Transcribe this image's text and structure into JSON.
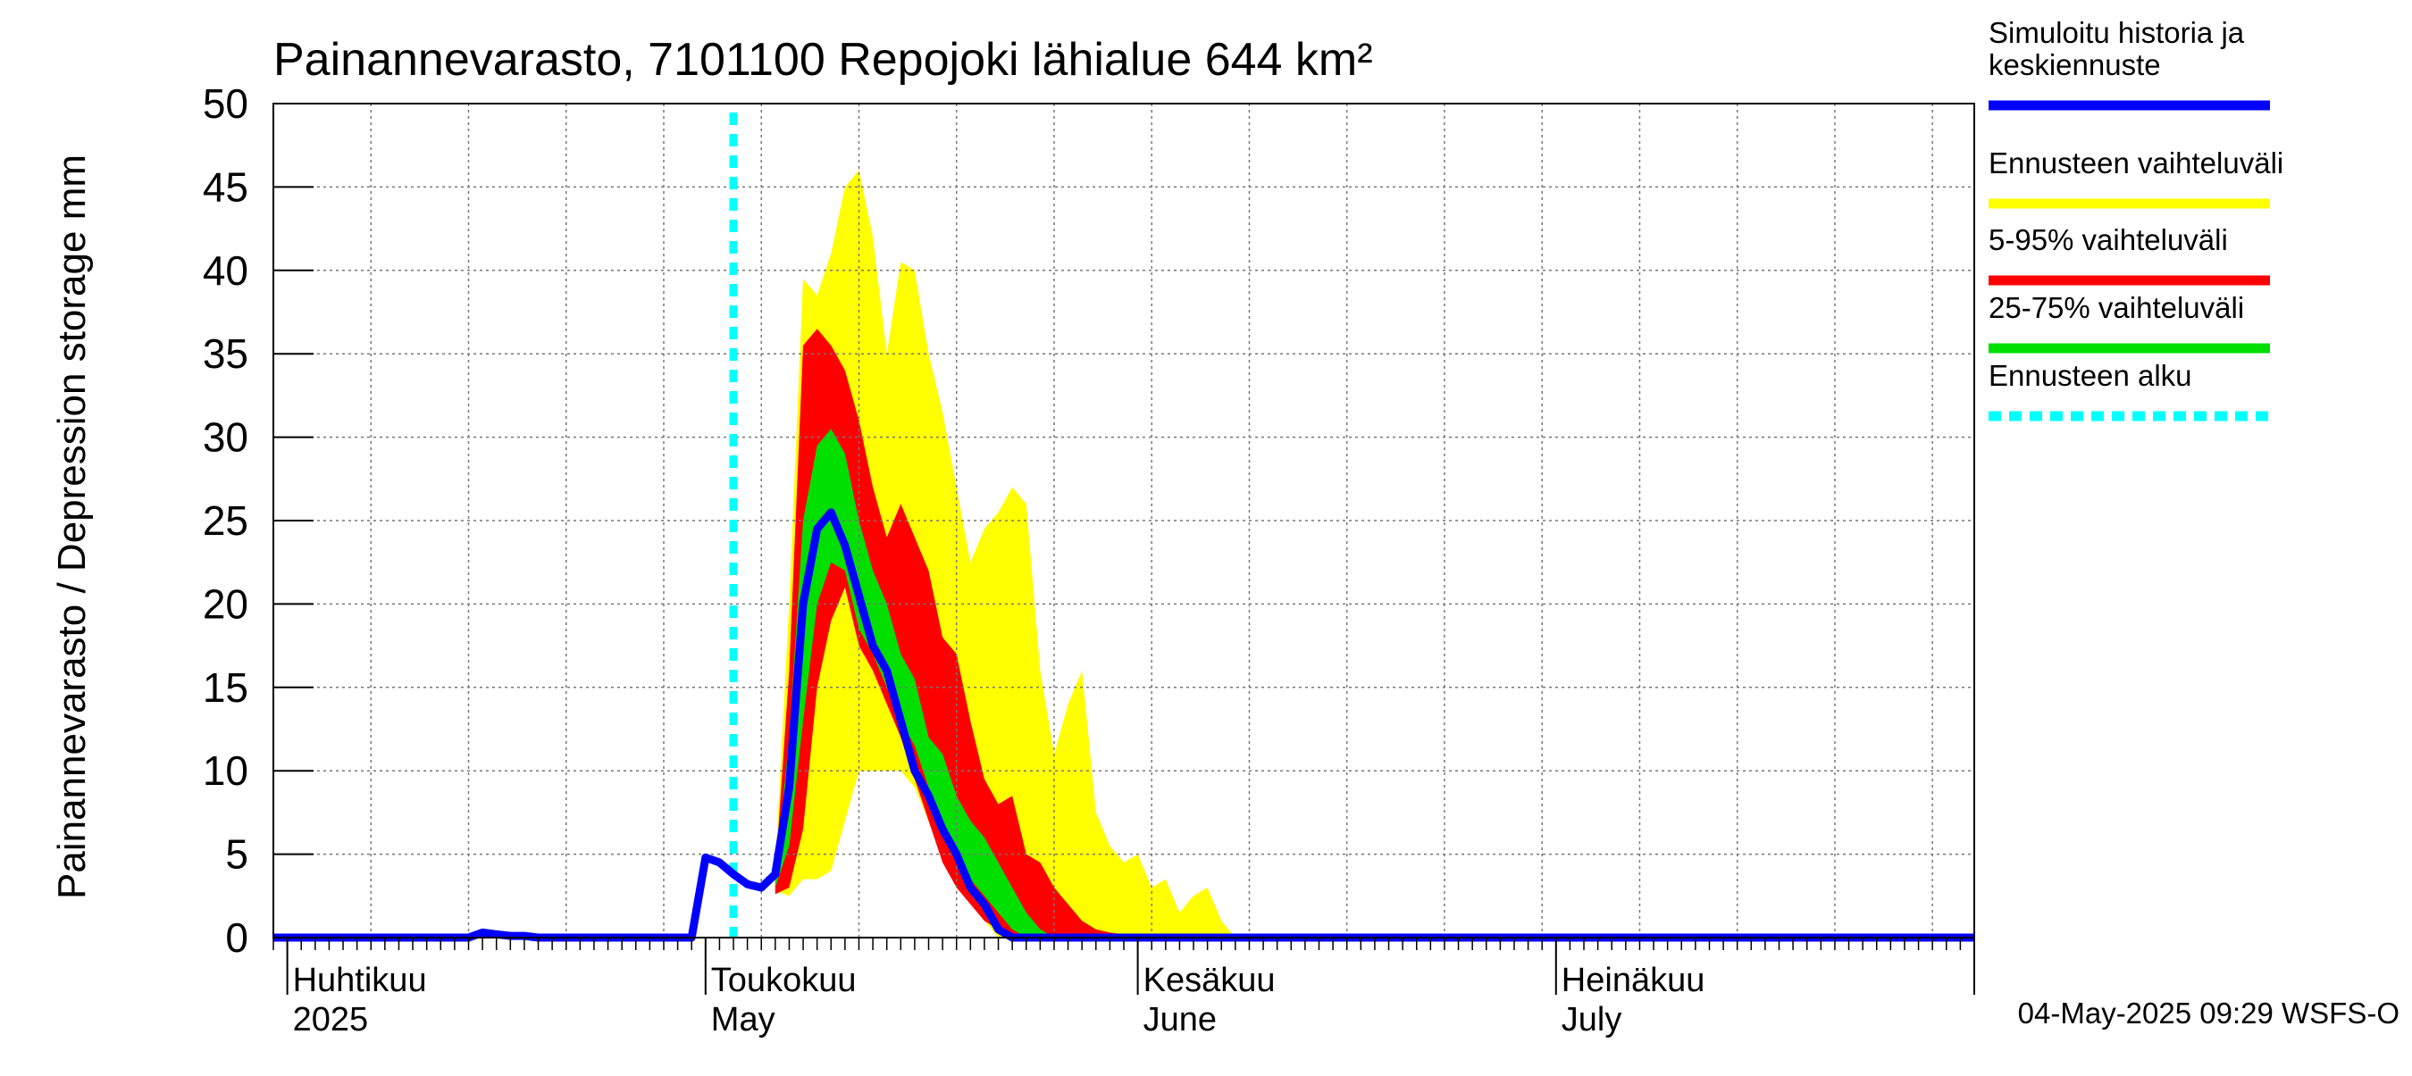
{
  "chart_data": {
    "type": "area",
    "title": "Painannevarasto, 7101100 Repojoki lähialue 644 km²",
    "ylabel": "Painannevarasto / Depression storage    mm",
    "ylim": [
      0,
      50
    ],
    "yticks": [
      0,
      5,
      10,
      15,
      20,
      25,
      30,
      35,
      40,
      45,
      50
    ],
    "xlim": [
      "2025-03-31",
      "2025-07-31"
    ],
    "month_labels": [
      {
        "date": "2025-04-01",
        "fi": "Huhtikuu",
        "en": "2025"
      },
      {
        "date": "2025-05-01",
        "fi": "Toukokuu",
        "en": "May"
      },
      {
        "date": "2025-06-01",
        "fi": "Kesäkuu",
        "en": "June"
      },
      {
        "date": "2025-07-01",
        "fi": "Heinäkuu",
        "en": "July"
      }
    ],
    "forecast_start": "2025-05-03",
    "timestamp": "04-May-2025 09:29 WSFS-O",
    "legend": [
      {
        "label": "Simuloitu historia ja\nkeskiennuste",
        "color": "#0000ff",
        "style": "solid"
      },
      {
        "label": "Ennusteen vaihteluväli",
        "color": "#ffff00",
        "style": "solid"
      },
      {
        "label": "5-95% vaihteluväli",
        "color": "#ff0000",
        "style": "solid"
      },
      {
        "label": "25-75% vaihteluväli",
        "color": "#00e000",
        "style": "solid"
      },
      {
        "label": "Ennusteen alku",
        "color": "#00ffff",
        "style": "dashed"
      }
    ],
    "bands": {
      "x": [
        "2025-05-06",
        "2025-05-07",
        "2025-05-08",
        "2025-05-09",
        "2025-05-10",
        "2025-05-11",
        "2025-05-12",
        "2025-05-13",
        "2025-05-14",
        "2025-05-15",
        "2025-05-16",
        "2025-05-17",
        "2025-05-18",
        "2025-05-19",
        "2025-05-20",
        "2025-05-21",
        "2025-05-22",
        "2025-05-23",
        "2025-05-24",
        "2025-05-25",
        "2025-05-26",
        "2025-05-27",
        "2025-05-28",
        "2025-05-29",
        "2025-05-30",
        "2025-05-31",
        "2025-06-01",
        "2025-06-02",
        "2025-06-03",
        "2025-06-04",
        "2025-06-05",
        "2025-06-06",
        "2025-06-07",
        "2025-06-08",
        "2025-06-09",
        "2025-06-10",
        "2025-06-11",
        "2025-06-12",
        "2025-06-13",
        "2025-06-14",
        "2025-06-15",
        "2025-06-16"
      ],
      "envelope_min": [
        2.8,
        2.5,
        3.5,
        3.5,
        4,
        7,
        10,
        10,
        10,
        10,
        9,
        7,
        5,
        3.5,
        2.5,
        1,
        0,
        0,
        0,
        0,
        0,
        0,
        0,
        0,
        0,
        0,
        0,
        0,
        0,
        0,
        0,
        0,
        0,
        0,
        0,
        0,
        0,
        0,
        0,
        0,
        0,
        0
      ],
      "envelope_max": [
        4.2,
        20,
        39.5,
        38.5,
        41,
        45,
        46,
        42,
        35,
        40.5,
        40,
        35,
        31.5,
        27,
        22.5,
        24.5,
        25.5,
        27,
        26,
        16,
        11,
        14,
        16,
        7.5,
        5.5,
        4.5,
        5,
        3,
        3.5,
        1.5,
        2.5,
        3,
        1,
        0,
        0,
        0,
        0,
        0,
        0,
        0,
        0,
        0
      ],
      "p5": [
        2.6,
        3,
        6.5,
        15,
        19,
        21,
        17.5,
        16,
        14,
        12,
        9.5,
        7,
        4.5,
        3,
        2,
        1,
        0.5,
        0,
        0,
        0,
        0,
        0,
        0,
        0,
        0,
        0,
        0,
        0,
        0,
        0,
        0,
        0,
        0,
        0,
        0,
        0,
        0,
        0,
        0,
        0,
        0,
        0
      ],
      "p95": [
        3.8,
        16,
        35.5,
        36.5,
        35.5,
        34,
        31,
        27,
        24,
        26,
        24,
        22,
        18,
        17,
        13,
        9.5,
        8,
        8.5,
        5,
        4.5,
        3,
        2,
        1,
        0.5,
        0.3,
        0.2,
        0,
        0,
        0,
        0,
        0,
        0,
        0,
        0,
        0,
        0,
        0,
        0,
        0,
        0,
        0,
        0
      ],
      "p25": [
        3,
        5.5,
        13,
        20,
        22.5,
        22,
        18.5,
        17,
        15,
        13,
        11.5,
        9,
        6.5,
        5,
        3.5,
        2.5,
        1.5,
        0.5,
        0,
        0,
        0,
        0,
        0,
        0,
        0,
        0,
        0,
        0,
        0,
        0,
        0,
        0,
        0,
        0,
        0,
        0,
        0,
        0,
        0,
        0,
        0,
        0
      ],
      "p75": [
        3.5,
        12,
        25,
        29.5,
        30.5,
        29,
        25,
        22,
        20,
        17,
        15.5,
        12,
        11,
        8.5,
        7,
        6,
        4.5,
        3,
        1.5,
        0.5,
        0,
        0,
        0,
        0,
        0,
        0,
        0,
        0,
        0,
        0,
        0,
        0,
        0,
        0,
        0,
        0,
        0,
        0,
        0,
        0,
        0,
        0
      ]
    },
    "series": [
      {
        "name": "Simuloitu historia ja keskiennuste",
        "x": [
          "2025-03-31",
          "2025-04-14",
          "2025-04-15",
          "2025-04-16",
          "2025-04-17",
          "2025-04-18",
          "2025-04-19",
          "2025-04-30",
          "2025-05-01",
          "2025-05-02",
          "2025-05-03",
          "2025-05-04",
          "2025-05-05",
          "2025-05-06",
          "2025-05-07",
          "2025-05-08",
          "2025-05-09",
          "2025-05-10",
          "2025-05-11",
          "2025-05-12",
          "2025-05-13",
          "2025-05-14",
          "2025-05-15",
          "2025-05-16",
          "2025-05-17",
          "2025-05-18",
          "2025-05-19",
          "2025-05-20",
          "2025-05-21",
          "2025-05-22",
          "2025-05-23",
          "2025-05-24",
          "2025-05-25",
          "2025-05-26",
          "2025-05-27",
          "2025-05-28",
          "2025-07-31"
        ],
        "values": [
          0,
          0,
          0.3,
          0.2,
          0.1,
          0.1,
          0,
          0,
          4.8,
          4.5,
          3.8,
          3.2,
          3,
          3.8,
          9,
          20,
          24.5,
          25.5,
          23.5,
          20.5,
          17.5,
          16,
          13,
          10,
          8.5,
          6.5,
          5,
          3,
          2,
          0.5,
          0,
          0,
          0,
          0,
          0,
          0,
          0
        ]
      }
    ]
  }
}
